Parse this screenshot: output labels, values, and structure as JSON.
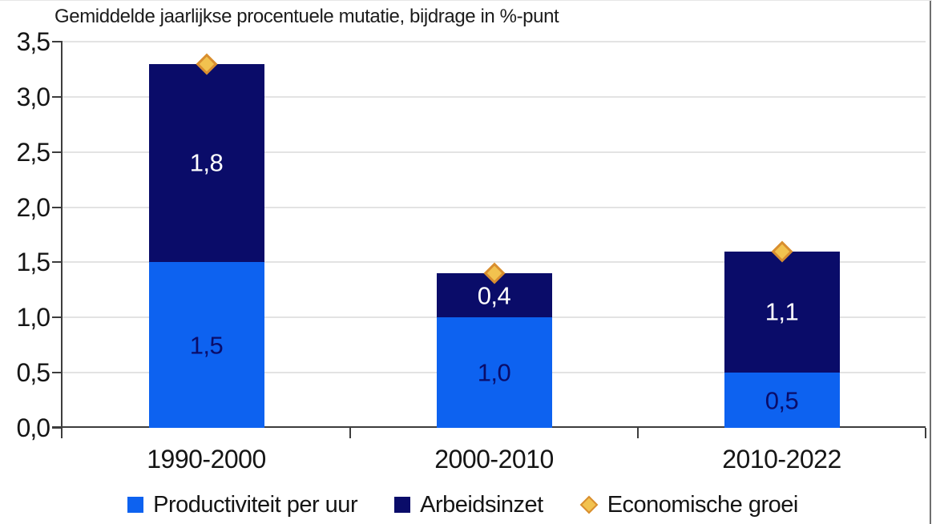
{
  "title": "Gemiddelde jaarlijkse procentuele mutatie, bijdrage in %-punt",
  "colors": {
    "productivity_blue": "#0d62f0",
    "labor_navy": "#0a0c69",
    "growth_gold_fill": "#f2c24f",
    "growth_gold_border": "#d98e2f",
    "gridline": "#e3e3e3",
    "axis": "#3d3d3d",
    "text": "#151515",
    "label_on_navy": "#ffffff",
    "label_on_blue": "#0a0c69"
  },
  "chart_data": {
    "type": "bar",
    "stacked": true,
    "title": "Gemiddelde jaarlijkse procentuele mutatie, bijdrage in %-punt",
    "xlabel": "",
    "ylabel": "",
    "categories": [
      "1990-2000",
      "2000-2010",
      "2010-2022"
    ],
    "series": [
      {
        "name": "Productiviteit per uur",
        "type": "bar",
        "color": "#0d62f0",
        "values": [
          1.5,
          1.0,
          0.5
        ],
        "labels": [
          "1,5",
          "1,0",
          "0,5"
        ],
        "label_color": "#0a0c69"
      },
      {
        "name": "Arbeidsinzet",
        "type": "bar",
        "color": "#0a0c69",
        "values": [
          1.8,
          0.4,
          1.1
        ],
        "labels": [
          "1,8",
          "0,4",
          "1,1"
        ],
        "label_color": "#ffffff"
      },
      {
        "name": "Economische groei",
        "type": "scatter",
        "marker": "diamond",
        "color": "#f2c24f",
        "border_color": "#d98e2f",
        "values": [
          3.3,
          1.4,
          1.6
        ]
      }
    ],
    "ylim": [
      0,
      3.5
    ],
    "ytick_step": 0.5,
    "ytick_labels": [
      "0,0",
      "0,5",
      "1,0",
      "1,5",
      "2,0",
      "2,5",
      "3,0",
      "3,5"
    ],
    "grid": true,
    "legend_position": "bottom"
  }
}
